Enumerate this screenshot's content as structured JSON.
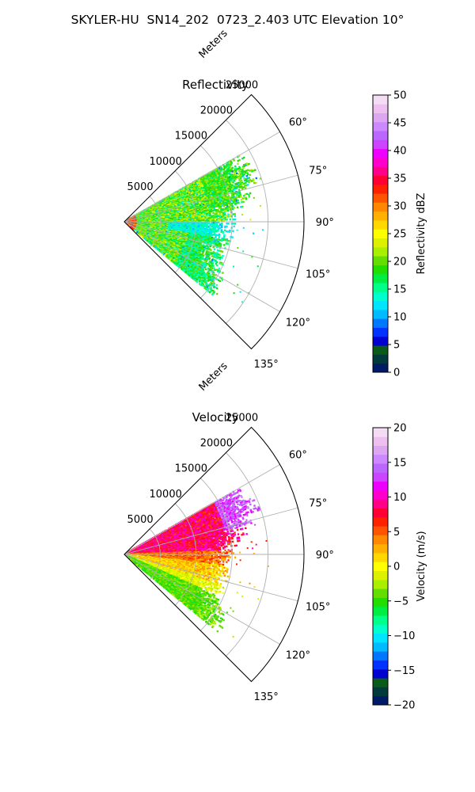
{
  "figure_title": "SKYLER-HU  SN14_202  0723_2.403 UTC Elevation 10°",
  "chart_data": [
    {
      "type": "polar-sector",
      "title": "Reflectivity",
      "radial_label": "Meters",
      "r_ticks": [
        5000,
        10000,
        15000,
        20000,
        25000
      ],
      "r_tick_labels": [
        "5000",
        "10000",
        "15000",
        "20000",
        "25000"
      ],
      "rlim": [
        0,
        25000
      ],
      "theta_ticks": [
        60,
        75,
        90,
        105,
        120,
        135
      ],
      "theta_tick_labels": [
        "60°",
        "75°",
        "90°",
        "105°",
        "120°",
        "135°"
      ],
      "theta_range_deg": [
        45,
        135
      ],
      "grid": true,
      "field_summary": {
        "description": "Radar reflectivity sweep, echoes mainly within 5000–19000 m range",
        "azimuth_extent_deg": [
          60,
          130
        ],
        "dominant_values_dBZ": [
          12,
          22
        ],
        "near_radar_values_dBZ": [
          28,
          36
        ]
      },
      "colorbar": {
        "label": "Reflectivity dBZ",
        "vmin": 0,
        "vmax": 50,
        "ticks": [
          0,
          5,
          10,
          15,
          20,
          25,
          30,
          35,
          40,
          45,
          50
        ],
        "tick_labels": [
          "0",
          "5",
          "10",
          "15",
          "20",
          "25",
          "30",
          "35",
          "40",
          "45",
          "50"
        ],
        "colors": [
          "#001a66",
          "#003a3a",
          "#0a5a1a",
          "#0000d0",
          "#0033ff",
          "#0077ff",
          "#00bbff",
          "#00e5ff",
          "#00ffcc",
          "#00ff88",
          "#00ee44",
          "#22dd00",
          "#66dd00",
          "#aaee00",
          "#ddf000",
          "#ffff00",
          "#ffd800",
          "#ffb000",
          "#ff8800",
          "#ff5500",
          "#ff2200",
          "#ff0033",
          "#ff0088",
          "#ff00cc",
          "#ee00ff",
          "#cc44ff",
          "#bb66ff",
          "#cc88ff",
          "#dda6f0",
          "#eec0f0",
          "#f5dcf5"
        ]
      }
    },
    {
      "type": "polar-sector",
      "title": "Velocity",
      "radial_label": "Meters",
      "r_ticks": [
        5000,
        10000,
        15000,
        20000,
        25000
      ],
      "r_tick_labels": [
        "5000",
        "10000",
        "15000",
        "20000",
        "25000"
      ],
      "rlim": [
        0,
        25000
      ],
      "theta_ticks": [
        60,
        75,
        90,
        105,
        120,
        135
      ],
      "theta_tick_labels": [
        "60°",
        "75°",
        "90°",
        "105°",
        "120°",
        "135°"
      ],
      "theta_range_deg": [
        45,
        135
      ],
      "grid": true,
      "field_summary": {
        "description": "Radial velocity sweep; positive (red) north of 90°, negative (green) south-east",
        "azimuth_extent_deg": [
          60,
          130
        ],
        "north_values_ms": [
          6,
          12
        ],
        "center_values_ms": [
          0,
          4
        ],
        "south_values_ms": [
          -6,
          -3
        ]
      },
      "colorbar": {
        "label": "Velocity (m/s)",
        "vmin": -20,
        "vmax": 20,
        "ticks": [
          -20,
          -15,
          -10,
          -5,
          0,
          5,
          10,
          15,
          20
        ],
        "tick_labels": [
          "−20",
          "−15",
          "−10",
          "−5",
          "0",
          "5",
          "10",
          "15",
          "20"
        ],
        "colors": [
          "#001a66",
          "#003a3a",
          "#0a5a1a",
          "#0000d0",
          "#0033ff",
          "#0077ff",
          "#00bbff",
          "#00e5ff",
          "#00ffcc",
          "#00ff88",
          "#00ee44",
          "#22dd00",
          "#66dd00",
          "#aaee00",
          "#ddf000",
          "#ffff00",
          "#ffd800",
          "#ffb000",
          "#ff8800",
          "#ff5500",
          "#ff2200",
          "#ff0033",
          "#ff0088",
          "#ff00cc",
          "#ee00ff",
          "#cc44ff",
          "#bb66ff",
          "#cc88ff",
          "#dda6f0",
          "#eec0f0",
          "#f5dcf5"
        ]
      }
    }
  ]
}
